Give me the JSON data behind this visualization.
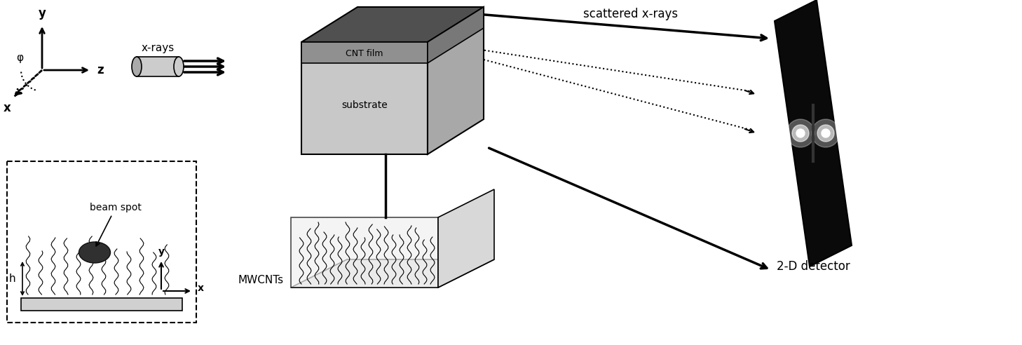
{
  "bg_color": "#ffffff",
  "fig_width": 14.58,
  "fig_height": 4.92,
  "title": "",
  "labels": {
    "xrays": "x-rays",
    "scattered": "scattered x-rays",
    "cnt_film": "CNT film",
    "substrate": "substrate",
    "mwcnts": "MWCNTs",
    "beam_spot": "beam spot",
    "detector": "2-D detector",
    "y_axis": "y",
    "z_axis": "z",
    "x_axis": "x",
    "y_axis2": "y",
    "x_axis2": "x",
    "h_label": "h"
  },
  "colors": {
    "black": "#000000",
    "dark_gray": "#404040",
    "medium_gray": "#808080",
    "light_gray": "#b0b0b0",
    "white": "#ffffff",
    "cnt_film_gray": "#909090",
    "substrate_light": "#d0d0d0",
    "top_dark": "#505050",
    "detector_bg": "#101010"
  }
}
